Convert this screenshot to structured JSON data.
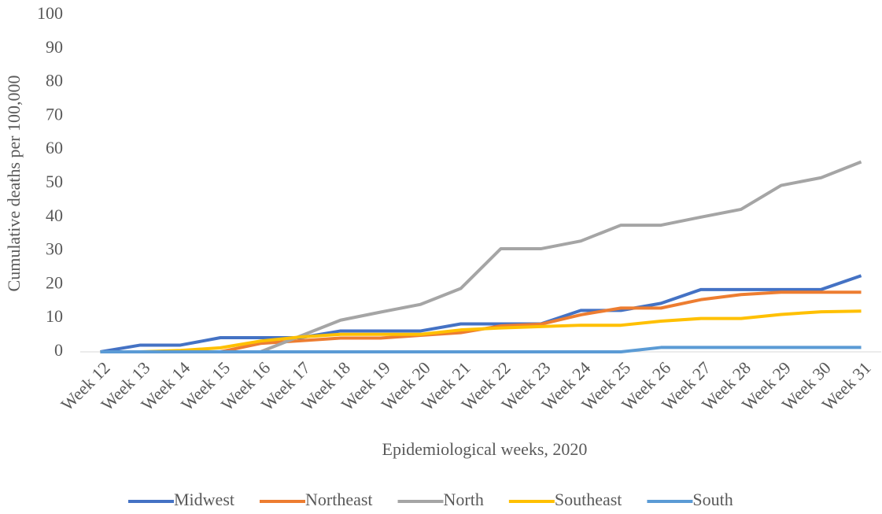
{
  "chart_data": {
    "type": "line",
    "x_label": "Epidemiological weeks, 2020",
    "y_label": "Cumulative deaths per 100,000",
    "categories": [
      "Week 12",
      "Week 13",
      "Week 14",
      "Week 15",
      "Week 16",
      "Week 17",
      "Week 18",
      "Week 19",
      "Week 20",
      "Week 21",
      "Week 22",
      "Week 23",
      "Week 24",
      "Week 25",
      "Week 26",
      "Week 27",
      "Week 28",
      "Week 29",
      "Week 30",
      "Week 31"
    ],
    "ylim": [
      0,
      100
    ],
    "yticks": [
      0,
      10,
      20,
      30,
      40,
      50,
      60,
      70,
      80,
      90,
      100
    ],
    "grid": false,
    "legend": "bottom",
    "series": [
      {
        "name": "Midwest",
        "color": "#4472c4",
        "values": [
          0,
          2,
          2,
          4.2,
          4.2,
          4.2,
          6.2,
          6.2,
          6.2,
          8.3,
          8.3,
          8.3,
          12.3,
          12.3,
          14.4,
          18.5,
          18.5,
          18.5,
          18.5,
          22.6
        ]
      },
      {
        "name": "Northeast",
        "color": "#ed7d31",
        "values": [
          0,
          0,
          0,
          0,
          2.5,
          3.3,
          4.1,
          4.1,
          4.9,
          5.7,
          7.7,
          8.2,
          11,
          13,
          13,
          15.5,
          17,
          17.7,
          17.7,
          17.7
        ]
      },
      {
        "name": "North",
        "color": "#a5a5a5",
        "values": [
          0,
          0,
          0,
          0,
          0,
          4.7,
          9.4,
          11.8,
          14.1,
          18.8,
          30.6,
          30.6,
          32.9,
          37.6,
          37.6,
          40,
          42.3,
          49.4,
          51.7,
          56.4
        ]
      },
      {
        "name": "Southeast",
        "color": "#ffc000",
        "values": [
          0,
          0,
          0.4,
          1.2,
          3.2,
          4.4,
          5.2,
          5.2,
          5.2,
          6.5,
          7.1,
          7.5,
          7.9,
          7.9,
          9.1,
          9.9,
          9.9,
          11.1,
          11.9,
          12.1
        ]
      },
      {
        "name": "South",
        "color": "#5b9bd5",
        "values": [
          0,
          0,
          0,
          0,
          0,
          0,
          0,
          0,
          0,
          0,
          0,
          0,
          0,
          0,
          1.3,
          1.3,
          1.3,
          1.3,
          1.3,
          1.3
        ]
      }
    ]
  }
}
